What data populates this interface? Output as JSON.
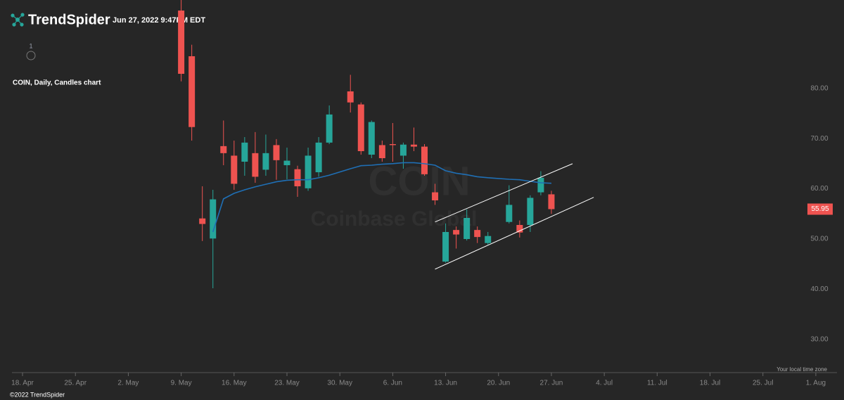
{
  "header": {
    "brand": "TrendSpider",
    "timestamp": "Jun 27, 2022 9:47PM EDT",
    "indicator_count": "1"
  },
  "chart_data": {
    "type": "candlestick",
    "title": "COIN, Daily, Candles chart",
    "watermark": {
      "symbol": "COIN",
      "name": "Coinbase Global"
    },
    "up_color": "#26a69a",
    "down_color": "#ef5350",
    "candles": {
      "x": [
        "2022-05-09",
        "2022-05-10",
        "2022-05-11",
        "2022-05-12",
        "2022-05-13",
        "2022-05-16",
        "2022-05-17",
        "2022-05-18",
        "2022-05-19",
        "2022-05-20",
        "2022-05-23",
        "2022-05-24",
        "2022-05-25",
        "2022-05-26",
        "2022-05-27",
        "2022-05-31",
        "2022-06-01",
        "2022-06-02",
        "2022-06-03",
        "2022-06-06",
        "2022-06-07",
        "2022-06-08",
        "2022-06-09",
        "2022-06-10",
        "2022-06-13",
        "2022-06-14",
        "2022-06-15",
        "2022-06-16",
        "2022-06-17",
        "2022-06-21",
        "2022-06-22",
        "2022-06-23",
        "2022-06-24",
        "2022-06-27"
      ],
      "open": [
        95.5,
        86.4,
        54.1,
        50.1,
        68.5,
        66.6,
        65.4,
        67.1,
        63.8,
        68.7,
        64.7,
        63.9,
        60.1,
        63.3,
        69.2,
        79.4,
        76.8,
        66.8,
        68.7,
        68.9,
        66.6,
        68.8,
        68.4,
        59.3,
        45.5,
        51.8,
        50.0,
        51.8,
        49.2,
        53.4,
        52.8,
        52.8,
        59.3,
        58.9
      ],
      "high": [
        98,
        88.7,
        60.5,
        59.8,
        73.6,
        69.6,
        70.3,
        71.3,
        70.8,
        69.9,
        68.2,
        64.6,
        68.2,
        70.3,
        76.6,
        82.7,
        77.2,
        73.6,
        69.6,
        73.1,
        69.2,
        72.2,
        68.9,
        61.0,
        53.1,
        52.5,
        55.9,
        52.5,
        51.4,
        60.7,
        53.7,
        58.7,
        63.5,
        59.6
      ],
      "low": [
        81.4,
        69.6,
        49.6,
        40.2,
        64.7,
        59.8,
        62.6,
        61.2,
        62.6,
        61.8,
        61.9,
        58.4,
        59.6,
        62.4,
        68.9,
        75.2,
        66.8,
        66.1,
        65.4,
        65.4,
        64.0,
        67.5,
        62.6,
        56.8,
        45.3,
        48.1,
        49.7,
        49.2,
        48.9,
        53.1,
        50.3,
        51.4,
        58.7,
        55.0
      ],
      "close": [
        82.9,
        72.3,
        53.0,
        57.9,
        67.1,
        61.0,
        69.2,
        62.4,
        67.1,
        65.7,
        65.6,
        60.5,
        66.6,
        69.2,
        74.8,
        77.2,
        67.5,
        73.3,
        66.1,
        68.7,
        68.8,
        68.4,
        62.9,
        57.7,
        51.4,
        50.9,
        54.2,
        50.4,
        50.6,
        56.8,
        51.3,
        58.2,
        62.2,
        55.95
      ]
    },
    "moving_average": {
      "color": "#1f6fb5",
      "x": [
        "2022-05-12",
        "2022-05-13",
        "2022-05-16",
        "2022-05-17",
        "2022-05-18",
        "2022-05-19",
        "2022-05-20",
        "2022-05-23",
        "2022-05-24",
        "2022-05-25",
        "2022-05-26",
        "2022-05-27",
        "2022-05-31",
        "2022-06-01",
        "2022-06-02",
        "2022-06-03",
        "2022-06-06",
        "2022-06-07",
        "2022-06-08",
        "2022-06-09",
        "2022-06-10",
        "2022-06-13",
        "2022-06-14",
        "2022-06-15",
        "2022-06-16",
        "2022-06-17",
        "2022-06-21",
        "2022-06-22",
        "2022-06-23",
        "2022-06-24",
        "2022-06-27"
      ],
      "values": [
        51.4,
        58.0,
        59.1,
        59.8,
        60.4,
        60.9,
        61.4,
        61.7,
        61.8,
        61.8,
        62.2,
        62.7,
        64.0,
        64.6,
        64.7,
        64.9,
        65.0,
        65.2,
        65.2,
        65.0,
        64.7,
        63.6,
        63.1,
        62.8,
        62.4,
        62.2,
        61.9,
        61.8,
        61.5,
        61.2,
        61.1
      ]
    },
    "trendlines": [
      {
        "color": "#ffffff",
        "x": [
          "2022-06-10",
          "2022-06-29"
        ],
        "values": [
          53.4,
          65.0
        ]
      },
      {
        "color": "#ffffff",
        "x": [
          "2022-06-10",
          "2022-07-01"
        ],
        "values": [
          44.0,
          58.3
        ]
      }
    ],
    "ylim": [
      23.4,
      97.6
    ],
    "yticks": [
      {
        "value": 30,
        "label": "30.00"
      },
      {
        "value": 40,
        "label": "40.00"
      },
      {
        "value": 50,
        "label": "50.00"
      },
      {
        "value": 60,
        "label": "60.00"
      },
      {
        "value": 70,
        "label": "70.00"
      },
      {
        "value": 80,
        "label": "80.00"
      }
    ],
    "xlim": [
      "2022-04-15",
      "2022-08-03"
    ],
    "xticks": [
      {
        "value": "2022-04-18",
        "label": "18. Apr"
      },
      {
        "value": "2022-04-25",
        "label": "25. Apr"
      },
      {
        "value": "2022-05-02",
        "label": "2. May"
      },
      {
        "value": "2022-05-09",
        "label": "9. May"
      },
      {
        "value": "2022-05-16",
        "label": "16. May"
      },
      {
        "value": "2022-05-23",
        "label": "23. May"
      },
      {
        "value": "2022-05-30",
        "label": "30. May"
      },
      {
        "value": "2022-06-06",
        "label": "6. Jun"
      },
      {
        "value": "2022-06-13",
        "label": "13. Jun"
      },
      {
        "value": "2022-06-20",
        "label": "20. Jun"
      },
      {
        "value": "2022-06-27",
        "label": "27. Jun"
      },
      {
        "value": "2022-07-04",
        "label": "4. Jul"
      },
      {
        "value": "2022-07-11",
        "label": "11. Jul"
      },
      {
        "value": "2022-07-18",
        "label": "18. Jul"
      },
      {
        "value": "2022-07-25",
        "label": "25. Jul"
      },
      {
        "value": "2022-08-01",
        "label": "1. Aug"
      }
    ],
    "timezone_note": "Your local time zone"
  },
  "footer": {
    "copyright": "©2022 TrendSpider"
  }
}
